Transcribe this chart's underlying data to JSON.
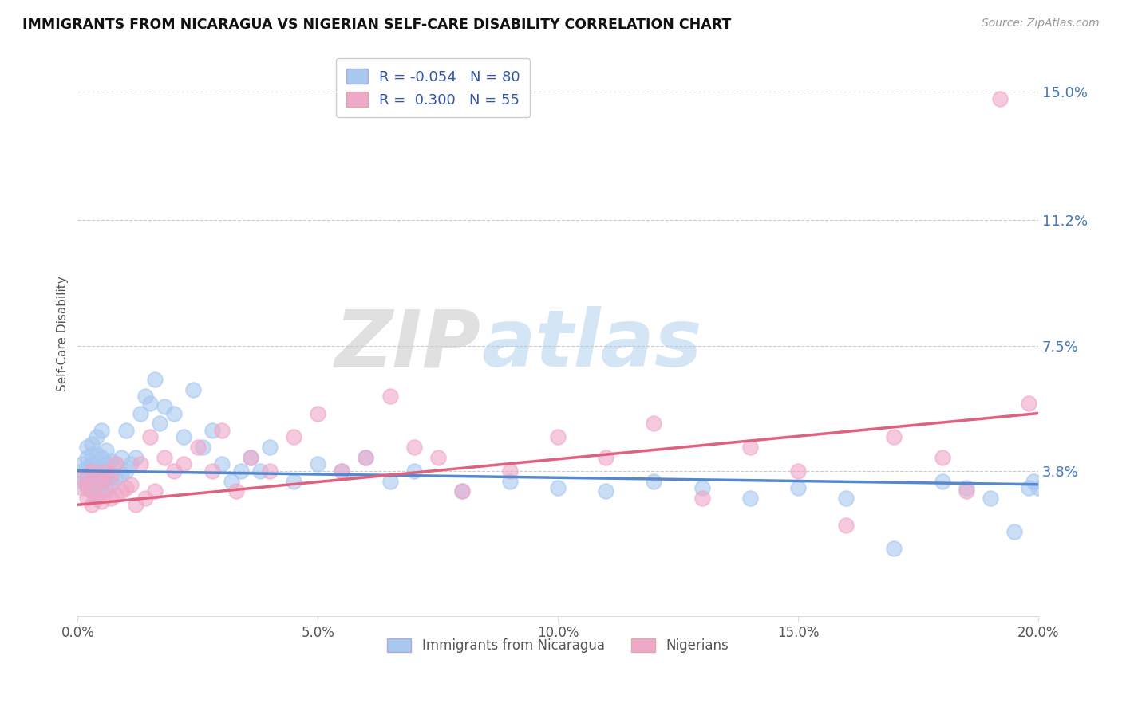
{
  "title": "IMMIGRANTS FROM NICARAGUA VS NIGERIAN SELF-CARE DISABILITY CORRELATION CHART",
  "source": "Source: ZipAtlas.com",
  "ylabel": "Self-Care Disability",
  "xlim": [
    0.0,
    0.2
  ],
  "ylim": [
    -0.005,
    0.162
  ],
  "yticks": [
    0.038,
    0.075,
    0.112,
    0.15
  ],
  "ytick_labels": [
    "3.8%",
    "7.5%",
    "11.2%",
    "15.0%"
  ],
  "xticks": [
    0.0,
    0.05,
    0.1,
    0.15,
    0.2
  ],
  "xtick_labels": [
    "0.0%",
    "5.0%",
    "10.0%",
    "15.0%",
    "20.0%"
  ],
  "blue_R": -0.054,
  "blue_N": 80,
  "pink_R": 0.3,
  "pink_N": 55,
  "blue_color": "#A8C8F0",
  "pink_color": "#F0A8C8",
  "blue_line_color": "#5588CC",
  "pink_line_color": "#E06080",
  "legend_label_blue": "Immigrants from Nicaragua",
  "legend_label_pink": "Nigerians",
  "blue_line_x0": 0.0,
  "blue_line_y0": 0.038,
  "blue_line_x1": 0.2,
  "blue_line_y1": 0.034,
  "pink_line_x0": 0.0,
  "pink_line_y0": 0.028,
  "pink_line_x1": 0.2,
  "pink_line_y1": 0.055,
  "blue_scatter_x": [
    0.001,
    0.001,
    0.001,
    0.002,
    0.002,
    0.002,
    0.002,
    0.002,
    0.003,
    0.003,
    0.003,
    0.003,
    0.003,
    0.003,
    0.004,
    0.004,
    0.004,
    0.004,
    0.004,
    0.004,
    0.005,
    0.005,
    0.005,
    0.005,
    0.005,
    0.006,
    0.006,
    0.006,
    0.006,
    0.007,
    0.007,
    0.007,
    0.008,
    0.008,
    0.009,
    0.009,
    0.01,
    0.01,
    0.011,
    0.012,
    0.013,
    0.014,
    0.015,
    0.016,
    0.017,
    0.018,
    0.02,
    0.022,
    0.024,
    0.026,
    0.028,
    0.03,
    0.032,
    0.034,
    0.036,
    0.038,
    0.04,
    0.045,
    0.05,
    0.055,
    0.06,
    0.065,
    0.07,
    0.08,
    0.09,
    0.1,
    0.11,
    0.12,
    0.13,
    0.14,
    0.15,
    0.16,
    0.17,
    0.18,
    0.185,
    0.19,
    0.195,
    0.198,
    0.199,
    0.2
  ],
  "blue_scatter_y": [
    0.035,
    0.038,
    0.04,
    0.033,
    0.036,
    0.039,
    0.042,
    0.045,
    0.032,
    0.035,
    0.038,
    0.04,
    0.043,
    0.046,
    0.031,
    0.034,
    0.037,
    0.04,
    0.043,
    0.048,
    0.032,
    0.035,
    0.038,
    0.042,
    0.05,
    0.033,
    0.036,
    0.04,
    0.044,
    0.034,
    0.037,
    0.041,
    0.036,
    0.04,
    0.037,
    0.042,
    0.038,
    0.05,
    0.04,
    0.042,
    0.055,
    0.06,
    0.058,
    0.065,
    0.052,
    0.057,
    0.055,
    0.048,
    0.062,
    0.045,
    0.05,
    0.04,
    0.035,
    0.038,
    0.042,
    0.038,
    0.045,
    0.035,
    0.04,
    0.038,
    0.042,
    0.035,
    0.038,
    0.032,
    0.035,
    0.033,
    0.032,
    0.035,
    0.033,
    0.03,
    0.033,
    0.03,
    0.015,
    0.035,
    0.033,
    0.03,
    0.02,
    0.033,
    0.035,
    0.033
  ],
  "pink_scatter_x": [
    0.001,
    0.001,
    0.002,
    0.002,
    0.003,
    0.003,
    0.003,
    0.004,
    0.004,
    0.005,
    0.005,
    0.006,
    0.006,
    0.007,
    0.007,
    0.008,
    0.008,
    0.009,
    0.01,
    0.011,
    0.012,
    0.013,
    0.014,
    0.015,
    0.016,
    0.018,
    0.02,
    0.022,
    0.025,
    0.028,
    0.03,
    0.033,
    0.036,
    0.04,
    0.045,
    0.05,
    0.055,
    0.06,
    0.065,
    0.07,
    0.075,
    0.08,
    0.09,
    0.1,
    0.11,
    0.12,
    0.13,
    0.14,
    0.15,
    0.16,
    0.17,
    0.18,
    0.185,
    0.192,
    0.198
  ],
  "pink_scatter_y": [
    0.033,
    0.036,
    0.03,
    0.034,
    0.028,
    0.032,
    0.038,
    0.03,
    0.036,
    0.029,
    0.035,
    0.032,
    0.038,
    0.03,
    0.036,
    0.031,
    0.04,
    0.032,
    0.033,
    0.034,
    0.028,
    0.04,
    0.03,
    0.048,
    0.032,
    0.042,
    0.038,
    0.04,
    0.045,
    0.038,
    0.05,
    0.032,
    0.042,
    0.038,
    0.048,
    0.055,
    0.038,
    0.042,
    0.06,
    0.045,
    0.042,
    0.032,
    0.038,
    0.048,
    0.042,
    0.052,
    0.03,
    0.045,
    0.038,
    0.022,
    0.048,
    0.042,
    0.032,
    0.148,
    0.058
  ]
}
